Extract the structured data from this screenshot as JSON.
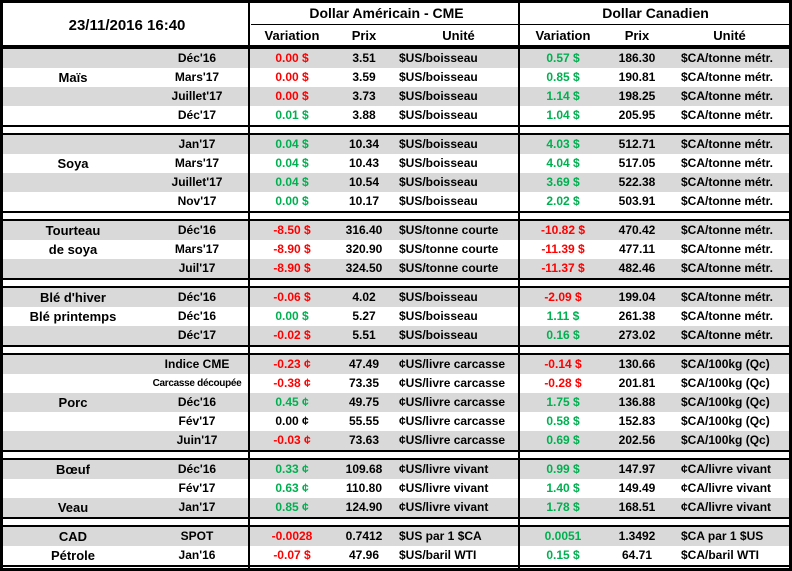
{
  "header": {
    "date": "23/11/2016 16:40",
    "us_title": "Dollar Américain - CME",
    "ca_title": "Dollar Canadien",
    "col_variation": "Variation",
    "col_prix": "Prix",
    "col_unite": "Unité"
  },
  "colors": {
    "up": "#00B050",
    "down": "#FF0000",
    "flat": "#000000",
    "stripe": "#D9D9D9",
    "border": "#000000"
  },
  "sections": [
    {
      "name": "mais",
      "rows": [
        {
          "label": "",
          "month": "Déc'16",
          "uvar": "0.00 $",
          "uc": "r",
          "uprix": "3.51",
          "uunit": "$US/boisseau",
          "cvar": "0.57 $",
          "cc": "g",
          "cprix": "186.30",
          "cunit": "$CA/tonne métr."
        },
        {
          "label": "Maïs",
          "month": "Mars'17",
          "uvar": "0.00 $",
          "uc": "r",
          "uprix": "3.59",
          "uunit": "$US/boisseau",
          "cvar": "0.85 $",
          "cc": "g",
          "cprix": "190.81",
          "cunit": "$CA/tonne métr."
        },
        {
          "label": "",
          "month": "Juillet'17",
          "uvar": "0.00 $",
          "uc": "r",
          "uprix": "3.73",
          "uunit": "$US/boisseau",
          "cvar": "1.14 $",
          "cc": "g",
          "cprix": "198.25",
          "cunit": "$CA/tonne métr."
        },
        {
          "label": "",
          "month": "Déc'17",
          "uvar": "0.01 $",
          "uc": "g",
          "uprix": "3.88",
          "uunit": "$US/boisseau",
          "cvar": "1.04 $",
          "cc": "g",
          "cprix": "205.95",
          "cunit": "$CA/tonne métr."
        }
      ]
    },
    {
      "name": "soya",
      "rows": [
        {
          "label": "",
          "month": "Jan'17",
          "uvar": "0.04 $",
          "uc": "g",
          "uprix": "10.34",
          "uunit": "$US/boisseau",
          "cvar": "4.03 $",
          "cc": "g",
          "cprix": "512.71",
          "cunit": "$CA/tonne métr."
        },
        {
          "label": "Soya",
          "month": "Mars'17",
          "uvar": "0.04 $",
          "uc": "g",
          "uprix": "10.43",
          "uunit": "$US/boisseau",
          "cvar": "4.04 $",
          "cc": "g",
          "cprix": "517.05",
          "cunit": "$CA/tonne métr."
        },
        {
          "label": "",
          "month": "Juillet'17",
          "uvar": "0.04 $",
          "uc": "g",
          "uprix": "10.54",
          "uunit": "$US/boisseau",
          "cvar": "3.69 $",
          "cc": "g",
          "cprix": "522.38",
          "cunit": "$CA/tonne métr."
        },
        {
          "label": "",
          "month": "Nov'17",
          "uvar": "0.00 $",
          "uc": "g",
          "uprix": "10.17",
          "uunit": "$US/boisseau",
          "cvar": "2.02 $",
          "cc": "g",
          "cprix": "503.91",
          "cunit": "$CA/tonne métr."
        }
      ]
    },
    {
      "name": "tourteau-de-soya",
      "rows": [
        {
          "label": "Tourteau",
          "month": "Déc'16",
          "uvar": "-8.50 $",
          "uc": "r",
          "uprix": "316.40",
          "uunit": "$US/tonne courte",
          "cvar": "-10.82 $",
          "cc": "r",
          "cprix": "470.42",
          "cunit": "$CA/tonne métr."
        },
        {
          "label": "de soya",
          "month": "Mars'17",
          "uvar": "-8.90 $",
          "uc": "r",
          "uprix": "320.90",
          "uunit": "$US/tonne courte",
          "cvar": "-11.39 $",
          "cc": "r",
          "cprix": "477.11",
          "cunit": "$CA/tonne métr."
        },
        {
          "label": "",
          "month": "Juil'17",
          "uvar": "-8.90 $",
          "uc": "r",
          "uprix": "324.50",
          "uunit": "$US/tonne courte",
          "cvar": "-11.37 $",
          "cc": "r",
          "cprix": "482.46",
          "cunit": "$CA/tonne métr."
        }
      ]
    },
    {
      "name": "ble",
      "rows": [
        {
          "label": "Blé d'hiver",
          "month": "Déc'16",
          "uvar": "-0.06 $",
          "uc": "r",
          "uprix": "4.02",
          "uunit": "$US/boisseau",
          "cvar": "-2.09 $",
          "cc": "r",
          "cprix": "199.04",
          "cunit": "$CA/tonne métr."
        },
        {
          "label": "Blé printemps",
          "month": "Déc'16",
          "uvar": "0.00 $",
          "uc": "g",
          "uprix": "5.27",
          "uunit": "$US/boisseau",
          "cvar": "1.11 $",
          "cc": "g",
          "cprix": "261.38",
          "cunit": "$CA/tonne métr."
        },
        {
          "label": "",
          "month": "Déc'17",
          "uvar": "-0.02 $",
          "uc": "r",
          "uprix": "5.51",
          "uunit": "$US/boisseau",
          "cvar": "0.16 $",
          "cc": "g",
          "cprix": "273.02",
          "cunit": "$CA/tonne métr."
        }
      ]
    },
    {
      "name": "porc",
      "rows": [
        {
          "label": "",
          "month": "Indice CME",
          "uvar": "-0.23 ¢",
          "uc": "r",
          "uprix": "47.49",
          "uunit": "¢US/livre carcasse",
          "cvar": "-0.14 $",
          "cc": "r",
          "cprix": "130.66",
          "cunit": "$CA/100kg (Qc)"
        },
        {
          "label": "",
          "month": "Carcasse découpée",
          "small": true,
          "uvar": "-0.38 ¢",
          "uc": "r",
          "uprix": "73.35",
          "uunit": "¢US/livre carcasse",
          "cvar": "-0.28 $",
          "cc": "r",
          "cprix": "201.81",
          "cunit": "$CA/100kg (Qc)"
        },
        {
          "label": "Porc",
          "month": "Déc'16",
          "uvar": "0.45 ¢",
          "uc": "g",
          "uprix": "49.75",
          "uunit": "¢US/livre carcasse",
          "cvar": "1.75 $",
          "cc": "g",
          "cprix": "136.88",
          "cunit": "$CA/100kg (Qc)"
        },
        {
          "label": "",
          "month": "Fév'17",
          "uvar": "0.00 ¢",
          "uc": "k",
          "uprix": "55.55",
          "uunit": "¢US/livre carcasse",
          "cvar": "0.58 $",
          "cc": "g",
          "cprix": "152.83",
          "cunit": "$CA/100kg (Qc)"
        },
        {
          "label": "",
          "month": "Juin'17",
          "uvar": "-0.03 ¢",
          "uc": "r",
          "uprix": "73.63",
          "uunit": "¢US/livre carcasse",
          "cvar": "0.69 $",
          "cc": "g",
          "cprix": "202.56",
          "cunit": "$CA/100kg (Qc)"
        }
      ]
    },
    {
      "name": "boeuf-veau",
      "rows": [
        {
          "label": "Bœuf",
          "month": "Déc'16",
          "uvar": "0.33 ¢",
          "uc": "g",
          "uprix": "109.68",
          "uunit": "¢US/livre vivant",
          "cvar": "0.99 $",
          "cc": "g",
          "cprix": "147.97",
          "cunit": "¢CA/livre vivant"
        },
        {
          "label": "",
          "month": "Fév'17",
          "uvar": "0.63 ¢",
          "uc": "g",
          "uprix": "110.80",
          "uunit": "¢US/livre vivant",
          "cvar": "1.40 $",
          "cc": "g",
          "cprix": "149.49",
          "cunit": "¢CA/livre vivant"
        },
        {
          "label": "Veau",
          "month": "Jan'17",
          "uvar": "0.85 ¢",
          "uc": "g",
          "uprix": "124.90",
          "uunit": "¢US/livre vivant",
          "cvar": "1.78 $",
          "cc": "g",
          "cprix": "168.51",
          "cunit": "¢CA/livre vivant"
        }
      ]
    },
    {
      "name": "cad-petrole",
      "rows": [
        {
          "label": "CAD",
          "month": "SPOT",
          "uvar": "-0.0028",
          "uc": "r",
          "uprix": "0.7412",
          "uunit": "$US par 1 $CA",
          "cvar": "0.0051",
          "cc": "g",
          "cprix": "1.3492",
          "cunit": "$CA par 1 $US"
        },
        {
          "label": "Pétrole",
          "month": "Jan'16",
          "uvar": "-0.07 $",
          "uc": "r",
          "uprix": "47.96",
          "uunit": "$US/baril WTI",
          "cvar": "0.15 $",
          "cc": "g",
          "cprix": "64.71",
          "cunit": "$CA/baril WTI"
        }
      ]
    }
  ]
}
